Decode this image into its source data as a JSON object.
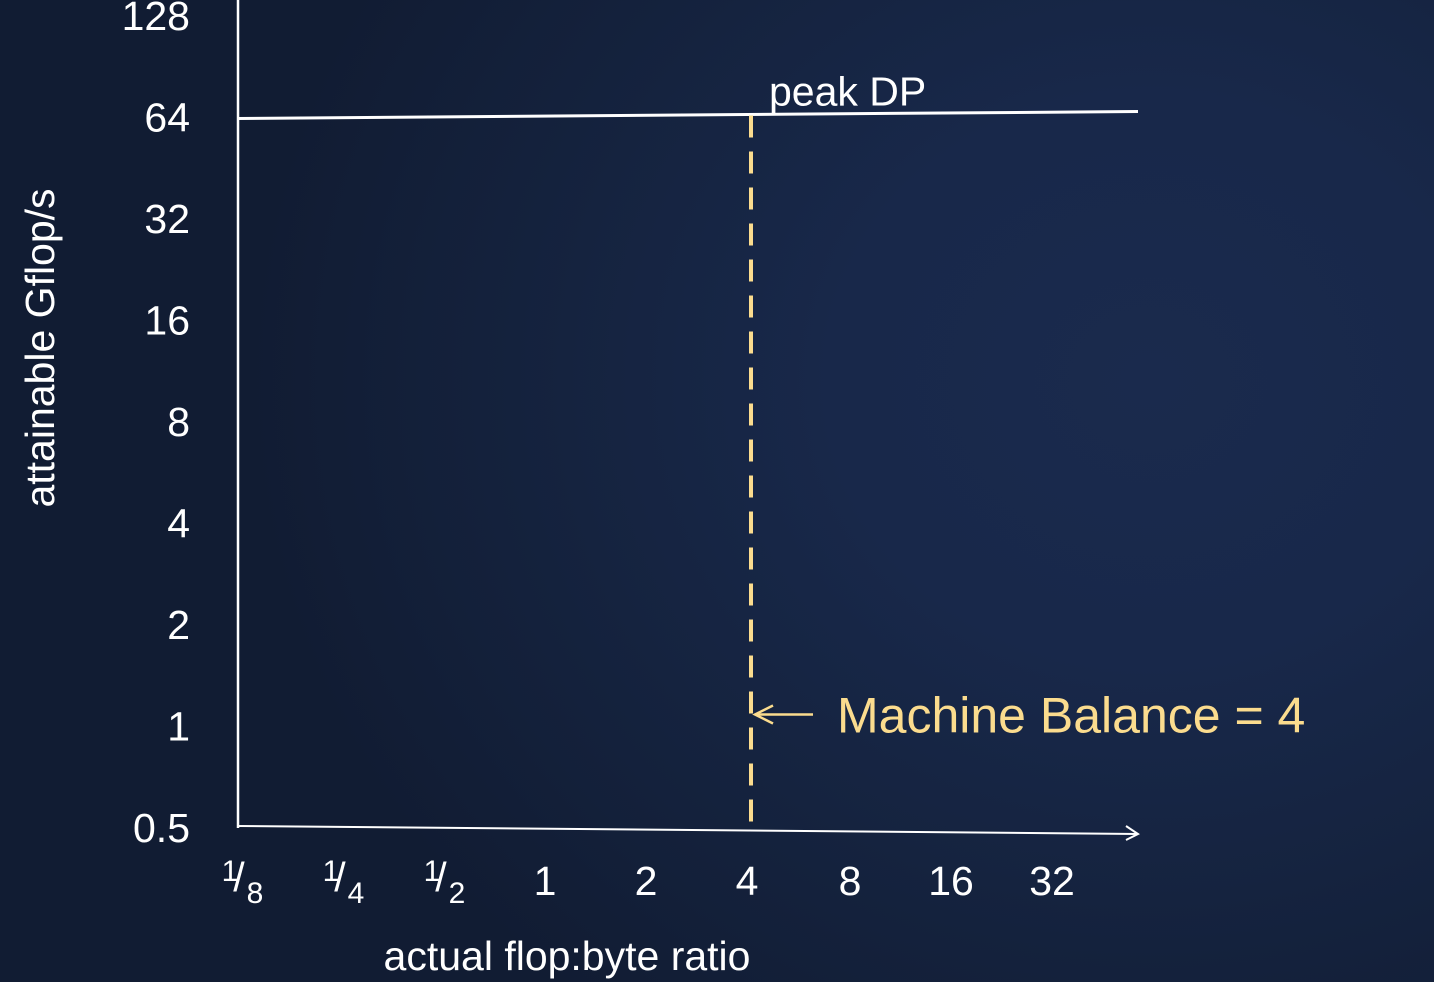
{
  "chart_data": {
    "type": "line",
    "xlabel": "actual flop:byte ratio",
    "ylabel": "attainable Gflop/s",
    "xscale": "log2",
    "yscale": "log2",
    "xlim": [
      0.125,
      64
    ],
    "ylim": [
      0.5,
      128
    ],
    "x_ticks": [
      {
        "value": 0.125,
        "num": "1",
        "den": "8"
      },
      {
        "value": 0.25,
        "num": "1",
        "den": "4"
      },
      {
        "value": 0.5,
        "num": "1",
        "den": "2"
      },
      {
        "value": 1,
        "label": "1"
      },
      {
        "value": 2,
        "label": "2"
      },
      {
        "value": 4,
        "label": "4"
      },
      {
        "value": 8,
        "label": "8"
      },
      {
        "value": 16,
        "label": "16"
      },
      {
        "value": 32,
        "label": "32"
      }
    ],
    "y_ticks": [
      {
        "value": 0.5,
        "label": "0.5"
      },
      {
        "value": 1,
        "label": "1"
      },
      {
        "value": 2,
        "label": "2"
      },
      {
        "value": 4,
        "label": "4"
      },
      {
        "value": 8,
        "label": "8"
      },
      {
        "value": 16,
        "label": "16"
      },
      {
        "value": 32,
        "label": "32"
      },
      {
        "value": 64,
        "label": "64"
      },
      {
        "value": 128,
        "label": "128"
      }
    ],
    "series": [
      {
        "label": "peak DP",
        "color": "#ffffff",
        "points": [
          {
            "x": 0.125,
            "y": 64
          },
          {
            "x": 64,
            "y": 64
          }
        ]
      }
    ],
    "annotations": [
      {
        "type": "vertical-dashed-line",
        "x": 4,
        "y_top": 64,
        "color": "#fbdc8e",
        "text": "Machine Balance = 4",
        "arrow_at_y": 1
      }
    ],
    "grid": false,
    "legend": "none"
  }
}
